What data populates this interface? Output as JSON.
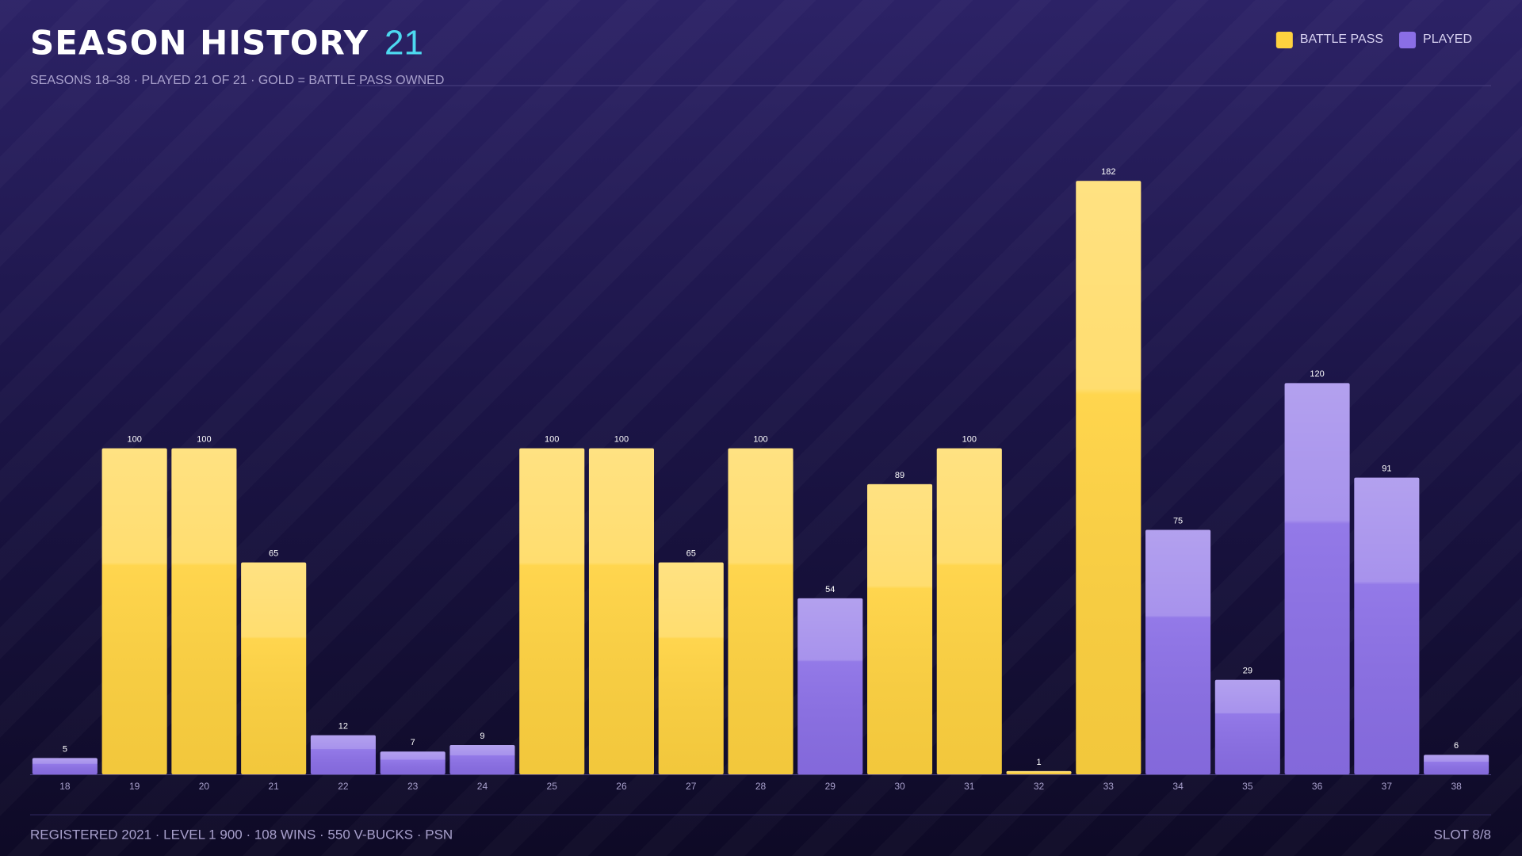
{
  "chart_data": {
    "type": "bar",
    "title": "SEASON HISTORY",
    "title_count": "21",
    "subtitle": "SEASONS 18–38 · PLAYED 21 OF 21 · GOLD = BATTLE PASS OWNED",
    "categories": [
      "18",
      "19",
      "20",
      "21",
      "22",
      "23",
      "24",
      "25",
      "26",
      "27",
      "28",
      "29",
      "30",
      "31",
      "32",
      "33",
      "34",
      "35",
      "36",
      "37",
      "38"
    ],
    "series": [
      {
        "name": "BATTLE PASS",
        "color": "#ffd23f",
        "values": [
          null,
          100,
          100,
          65,
          null,
          null,
          null,
          100,
          100,
          65,
          100,
          null,
          89,
          100,
          1,
          182,
          null,
          null,
          null,
          null,
          null
        ]
      },
      {
        "name": "PLAYED",
        "color": "#8a6ee6",
        "values": [
          5,
          null,
          null,
          null,
          12,
          7,
          9,
          null,
          null,
          null,
          null,
          54,
          null,
          null,
          null,
          null,
          75,
          29,
          120,
          91,
          6
        ]
      }
    ],
    "legend": "top-right",
    "footer": {
      "left": "REGISTERED 2021 · LEVEL 1 900 · 108 WINS · 550 V-BUCKS · PSN",
      "right": "SLOT 8/8"
    }
  }
}
